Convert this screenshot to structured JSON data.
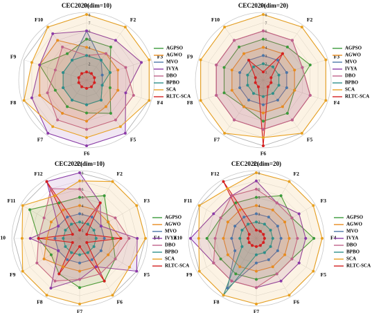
{
  "series_colors": {
    "AGPSO": "#3a9a3a",
    "AGWO": "#e88c1e",
    "MVO": "#4b76a8",
    "IVYA": "#8b3aa8",
    "DBO": "#c0608a",
    "BPBO": "#2d8f8a",
    "SCA": "#e8a020",
    "RLTC-SCA": "#d42020"
  },
  "chart_data": [
    {
      "type": "radar",
      "title": "CEC2020(dim=10)",
      "categories": [
        "F1",
        "F2",
        "F3",
        "F4",
        "F5",
        "F6",
        "F7",
        "F8",
        "F9",
        "F10"
      ],
      "rlim": [
        0,
        8
      ],
      "r_ticks": [
        "1",
        "2",
        "3",
        "4",
        "5",
        "6",
        "7",
        "8"
      ],
      "grid": true,
      "legend": "right",
      "series": [
        {
          "name": "AGPSO",
          "values": [
            5,
            5,
            3,
            3,
            5,
            4,
            4,
            4,
            6,
            4
          ]
        },
        {
          "name": "AGWO",
          "values": [
            4,
            4,
            4,
            4,
            4,
            5,
            5,
            6,
            6,
            6
          ]
        },
        {
          "name": "MVO",
          "values": [
            6,
            3,
            2,
            2,
            3,
            3,
            3,
            3,
            3,
            3
          ]
        },
        {
          "name": "IVYA",
          "values": [
            6,
            6,
            7,
            5,
            8,
            8,
            8,
            7,
            6,
            7
          ]
        },
        {
          "name": "DBO",
          "values": [
            3,
            4,
            5,
            6,
            6,
            6,
            6,
            5,
            4,
            5
          ]
        },
        {
          "name": "BPBO",
          "values": [
            3,
            3,
            3,
            2,
            3,
            3,
            3,
            3,
            3,
            3
          ]
        },
        {
          "name": "SCA",
          "values": [
            8,
            8,
            8,
            8,
            7,
            7,
            7,
            8,
            7,
            8
          ]
        },
        {
          "name": "RLTC-SCA",
          "values": [
            1,
            1,
            1,
            1,
            1,
            1,
            1,
            1,
            1,
            1
          ]
        }
      ]
    },
    {
      "type": "radar",
      "title": "CEC2020(dim=20)",
      "categories": [
        "F1",
        "F2",
        "F3",
        "F4",
        "F5",
        "F6",
        "F7",
        "F8",
        "F9",
        "F10"
      ],
      "rlim": [
        0,
        8
      ],
      "r_ticks": [
        "1",
        "2",
        "3",
        "4",
        "5",
        "6",
        "7",
        "8"
      ],
      "grid": true,
      "legend": "right",
      "series": [
        {
          "name": "AGPSO",
          "values": [
            5,
            5,
            6,
            4,
            5,
            5,
            4,
            5,
            5,
            5
          ]
        },
        {
          "name": "AGWO",
          "values": [
            4,
            4,
            4,
            4,
            4,
            4,
            4,
            4,
            4,
            4
          ]
        },
        {
          "name": "MVO",
          "values": [
            3,
            3,
            3,
            3,
            3,
            3,
            3,
            3,
            3,
            3
          ]
        },
        {
          "name": "IVYA",
          "values": [
            6,
            6,
            5,
            6,
            6,
            6,
            6,
            6,
            6,
            6
          ]
        },
        {
          "name": "DBO",
          "values": [
            6,
            6,
            5,
            6,
            6,
            6,
            6,
            6,
            6,
            6
          ]
        },
        {
          "name": "BPBO",
          "values": [
            2,
            2,
            2,
            2,
            2,
            2,
            2,
            2,
            2,
            2
          ]
        },
        {
          "name": "SCA",
          "values": [
            8,
            8,
            8,
            8,
            8,
            7,
            8,
            8,
            8,
            8
          ]
        },
        {
          "name": "RLTC-SCA",
          "values": [
            1,
            4,
            1,
            1,
            1,
            8,
            1,
            1,
            1,
            3
          ]
        }
      ]
    },
    {
      "type": "radar",
      "title": "CEC2022(dim=10)",
      "categories": [
        "F1",
        "F2",
        "F3",
        "F4",
        "F5",
        "F6",
        "F7",
        "F8",
        "F9",
        "F10",
        "F11",
        "F12"
      ],
      "rlim": [
        0,
        8
      ],
      "r_ticks": [
        "1",
        "2",
        "3",
        "4",
        "5",
        "6",
        "7",
        "8"
      ],
      "grid": true,
      "legend": "right",
      "series": [
        {
          "name": "AGPSO",
          "values": [
            5,
            6,
            4,
            4,
            5,
            6,
            6,
            5,
            4,
            5,
            7,
            5
          ]
        },
        {
          "name": "AGWO",
          "values": [
            4,
            4,
            4,
            5,
            4,
            4,
            4,
            4,
            5,
            4,
            4,
            4
          ]
        },
        {
          "name": "MVO",
          "values": [
            3,
            3,
            3,
            3,
            3,
            3,
            3,
            3,
            3,
            3,
            3,
            3
          ]
        },
        {
          "name": "IVYA",
          "values": [
            8,
            5,
            3,
            7,
            8,
            4,
            5,
            7,
            3,
            6,
            3,
            8
          ]
        },
        {
          "name": "DBO",
          "values": [
            6,
            4,
            5,
            6,
            5,
            5,
            5,
            6,
            6,
            5,
            5,
            7
          ]
        },
        {
          "name": "BPBO",
          "values": [
            2,
            2,
            2,
            2,
            2,
            2,
            2,
            2,
            2,
            2,
            2,
            2
          ]
        },
        {
          "name": "SCA",
          "values": [
            7,
            8,
            8,
            8,
            7,
            8,
            8,
            8,
            8,
            7,
            8,
            6
          ]
        },
        {
          "name": "RLTC-SCA",
          "values": [
            1,
            5,
            1,
            5,
            1,
            6,
            1,
            5,
            1,
            5,
            1,
            8
          ]
        }
      ]
    },
    {
      "type": "radar",
      "title": "CEC2022(dim=20)",
      "categories": [
        "F1",
        "F2",
        "F3",
        "F4",
        "F5",
        "F6",
        "F7",
        "F8",
        "F9",
        "F10",
        "F11",
        "F12"
      ],
      "rlim": [
        0,
        8
      ],
      "r_ticks": [
        "1",
        "2",
        "3",
        "4",
        "5",
        "6",
        "7",
        "8"
      ],
      "grid": true,
      "legend": "right",
      "series": [
        {
          "name": "AGPSO",
          "values": [
            5,
            6,
            5,
            7,
            5,
            5,
            5,
            5,
            5,
            6,
            5,
            5
          ]
        },
        {
          "name": "AGWO",
          "values": [
            4,
            4,
            4,
            4,
            4,
            4,
            4,
            4,
            4,
            4,
            4,
            4
          ]
        },
        {
          "name": "MVO",
          "values": [
            3,
            3,
            3,
            3,
            3,
            3,
            3,
            7,
            3,
            3,
            3,
            3
          ]
        },
        {
          "name": "IVYA",
          "values": [
            7,
            5,
            6,
            6,
            6,
            6,
            6,
            6,
            6,
            8,
            6,
            6
          ]
        },
        {
          "name": "DBO",
          "values": [
            6,
            5,
            5,
            5,
            5,
            5,
            6,
            6,
            6,
            5,
            5,
            6
          ]
        },
        {
          "name": "BPBO",
          "values": [
            2,
            2,
            2,
            2,
            2,
            2,
            2,
            8,
            2,
            2,
            2,
            2
          ]
        },
        {
          "name": "SCA",
          "values": [
            8,
            8,
            8,
            8,
            8,
            8,
            8,
            8,
            8,
            7,
            8,
            7
          ]
        },
        {
          "name": "RLTC-SCA",
          "values": [
            1,
            1,
            1,
            1,
            1,
            1,
            1,
            1,
            1,
            1,
            1,
            8
          ]
        }
      ]
    }
  ]
}
